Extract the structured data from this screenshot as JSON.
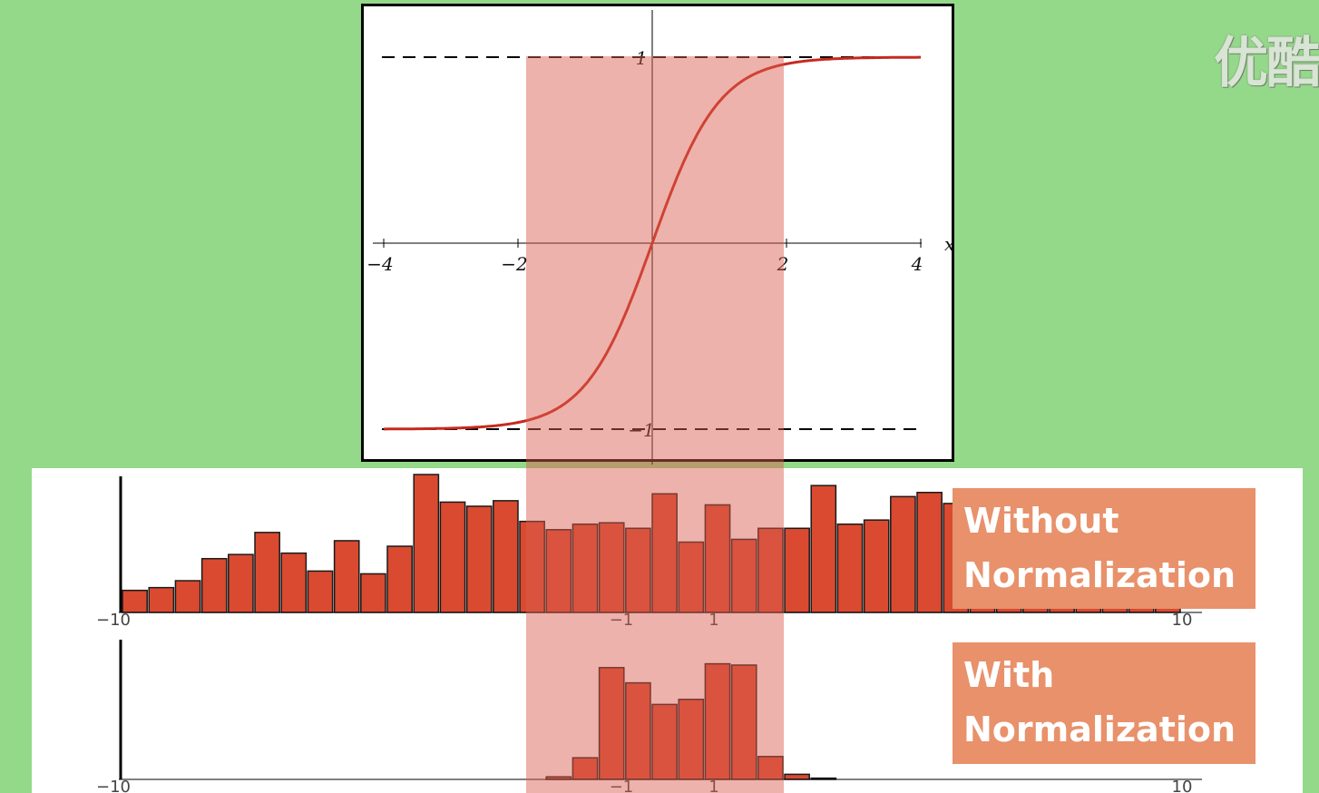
{
  "watermark": "优酷",
  "chart_data": [
    {
      "type": "line",
      "function": "tanh(x)",
      "x": [
        -4,
        -3.5,
        -3,
        -2.5,
        -2,
        -1.5,
        -1,
        -0.5,
        0,
        0.5,
        1,
        1.5,
        2,
        2.5,
        3,
        3.5,
        4
      ],
      "y": [
        -0.999,
        -0.998,
        -0.995,
        -0.987,
        -0.964,
        -0.905,
        -0.762,
        -0.462,
        0,
        0.462,
        0.762,
        0.905,
        0.964,
        0.987,
        0.995,
        0.998,
        0.999
      ],
      "xlabel": "x",
      "xticks": [
        "−4",
        "−2",
        "2",
        "4"
      ],
      "yticks": [
        "1",
        "−1"
      ],
      "xlim": [
        -4,
        4
      ],
      "ylim": [
        -1,
        1
      ],
      "asymptotes": [
        1,
        -1
      ],
      "series_color": "#c62a1e",
      "highlight_range": [
        -2,
        2
      ],
      "highlight_color": "#d95f50"
    },
    {
      "type": "bar",
      "title": "Without Normalization",
      "title_lines": [
        "Without",
        "Normalization"
      ],
      "xlim": [
        -10,
        10
      ],
      "xticks": [
        "−10",
        "−1",
        "1",
        "10"
      ],
      "bin_start": -10,
      "bin_width": 0.5,
      "values": [
        0.16,
        0.18,
        0.23,
        0.39,
        0.42,
        0.58,
        0.43,
        0.3,
        0.52,
        0.28,
        0.48,
        1.0,
        0.8,
        0.77,
        0.81,
        0.66,
        0.6,
        0.64,
        0.65,
        0.61,
        0.86,
        0.51,
        0.78,
        0.53,
        0.61,
        0.61,
        0.92,
        0.64,
        0.67,
        0.84,
        0.87,
        0.79,
        0.74,
        0.64,
        0.68,
        0.72,
        0.61,
        0.67,
        0.72,
        0.52
      ],
      "bar_color": "#d94a30"
    },
    {
      "type": "bar",
      "title": "With Normalization",
      "title_lines": [
        "With",
        "Normalization"
      ],
      "xlim": [
        -10,
        10
      ],
      "xticks": [
        "−10",
        "−1",
        "1",
        "10"
      ],
      "bin_start": -10,
      "bin_width": 0.5,
      "values": [
        0,
        0,
        0,
        0,
        0,
        0,
        0,
        0,
        0,
        0,
        0,
        0,
        0,
        0,
        0,
        0,
        0.02,
        0.17,
        0.88,
        0.76,
        0.59,
        0.63,
        0.91,
        0.9,
        0.18,
        0.04,
        0.01,
        0,
        0,
        0,
        0,
        0,
        0,
        0,
        0,
        0,
        0,
        0,
        0,
        0
      ],
      "bar_color": "#d94a30"
    }
  ]
}
